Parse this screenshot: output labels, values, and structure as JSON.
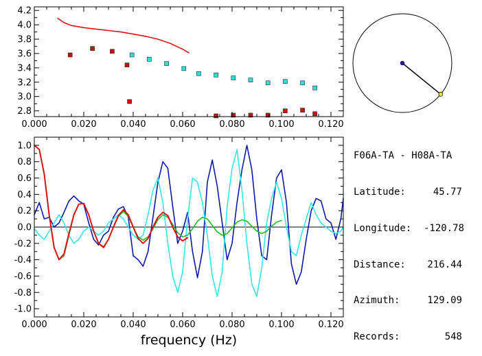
{
  "station_pair": "F06A-TA - H08A-TA",
  "info": [
    {
      "key": "Latitude:",
      "value": "45.77"
    },
    {
      "key": "Longitude:",
      "value": "-120.78"
    },
    {
      "key": "Distance:",
      "value": "216.44"
    },
    {
      "key": "Azimuth:",
      "value": "129.09"
    },
    {
      "key": "Records:",
      "value": "548"
    }
  ],
  "azimuth_deg": 129.09,
  "chart_data": [
    {
      "type": "scatter",
      "title": "",
      "xlabel": "",
      "ylabel": "",
      "xlim": [
        0.0,
        0.125
      ],
      "ylim": [
        2.72,
        4.25
      ],
      "x_ticks": [
        "0.000",
        "0.020",
        "0.040",
        "0.060",
        "0.080",
        "0.100",
        "0.120"
      ],
      "y_ticks": [
        "2.8",
        "3.0",
        "3.2",
        "3.4",
        "3.6",
        "3.8",
        "4.0",
        "4.2"
      ],
      "series": [
        {
          "kind": "line",
          "color": "#dd1111",
          "x": [
            0.0095,
            0.012,
            0.015,
            0.02,
            0.025,
            0.03,
            0.035,
            0.04,
            0.045,
            0.05,
            0.055,
            0.06,
            0.0625
          ],
          "y": [
            4.09,
            4.03,
            3.99,
            3.96,
            3.94,
            3.92,
            3.9,
            3.87,
            3.84,
            3.8,
            3.74,
            3.66,
            3.61
          ]
        },
        {
          "kind": "points",
          "color": "#cc1111",
          "x": [
            0.0145,
            0.0235,
            0.0315,
            0.0375,
            0.0385,
            0.0735,
            0.0805,
            0.0875,
            0.0945,
            0.1015,
            0.1085,
            0.1135
          ],
          "y": [
            3.58,
            3.67,
            3.63,
            3.44,
            2.93,
            2.73,
            2.74,
            2.74,
            2.74,
            2.8,
            2.81,
            2.76
          ]
        },
        {
          "kind": "points",
          "color": "#33dddd",
          "x": [
            0.0395,
            0.0465,
            0.0535,
            0.0605,
            0.0665,
            0.0735,
            0.0805,
            0.0875,
            0.0945,
            0.1015,
            0.1085,
            0.1135
          ],
          "y": [
            3.58,
            3.52,
            3.46,
            3.39,
            3.32,
            3.3,
            3.26,
            3.23,
            3.19,
            3.21,
            3.19,
            3.12
          ]
        }
      ]
    },
    {
      "type": "line",
      "title": "",
      "xlabel": "frequency (Hz)",
      "ylabel": "",
      "xlim": [
        0.0,
        0.125
      ],
      "ylim": [
        -1.1,
        1.1
      ],
      "x_ticks": [
        "0.000",
        "0.020",
        "0.040",
        "0.060",
        "0.080",
        "0.100",
        "0.120"
      ],
      "y_ticks": [
        "1.0",
        "0.8",
        "0.6",
        "0.4",
        "0.2",
        "0.0",
        "-0.2",
        "-0.4",
        "-0.6",
        "-0.8",
        "-1.0"
      ],
      "series": [
        {
          "color": "#0a1aa8",
          "x": [
            0.0,
            0.002,
            0.004,
            0.006,
            0.008,
            0.01,
            0.012,
            0.014,
            0.016,
            0.018,
            0.02,
            0.022,
            0.024,
            0.026,
            0.028,
            0.03,
            0.032,
            0.034,
            0.036,
            0.038,
            0.04,
            0.042,
            0.044,
            0.046,
            0.048,
            0.05,
            0.052,
            0.054,
            0.056,
            0.058,
            0.06,
            0.062,
            0.064,
            0.066,
            0.068,
            0.07,
            0.072,
            0.074,
            0.076,
            0.078,
            0.08,
            0.082,
            0.084,
            0.086,
            0.088,
            0.09,
            0.092,
            0.094,
            0.096,
            0.098,
            0.1,
            0.102,
            0.104,
            0.106,
            0.108,
            0.11,
            0.112,
            0.114,
            0.116,
            0.118,
            0.12,
            0.122,
            0.124,
            0.125
          ],
          "y": [
            0.15,
            0.3,
            0.1,
            0.12,
            0.0,
            0.05,
            0.18,
            0.32,
            0.38,
            0.32,
            0.28,
            0.05,
            -0.15,
            -0.22,
            -0.1,
            -0.05,
            0.12,
            0.22,
            0.25,
            0.12,
            -0.35,
            -0.4,
            -0.48,
            -0.3,
            0.12,
            0.55,
            0.8,
            0.72,
            0.25,
            -0.2,
            -0.05,
            0.18,
            -0.3,
            -0.62,
            -0.3,
            0.55,
            0.82,
            0.5,
            0.05,
            -0.4,
            -0.2,
            0.3,
            0.7,
            1.0,
            0.7,
            0.1,
            -0.35,
            -0.4,
            0.15,
            0.6,
            0.7,
            0.3,
            -0.45,
            -0.7,
            -0.55,
            -0.15,
            0.2,
            0.35,
            0.32,
            0.1,
            0.05,
            -0.15,
            0.1,
            0.35
          ]
        },
        {
          "color": "#33e6e6",
          "x": [
            0.0,
            0.002,
            0.004,
            0.006,
            0.008,
            0.01,
            0.012,
            0.014,
            0.016,
            0.018,
            0.02,
            0.022,
            0.024,
            0.026,
            0.028,
            0.03,
            0.032,
            0.034,
            0.036,
            0.038,
            0.04,
            0.042,
            0.044,
            0.046,
            0.048,
            0.05,
            0.052,
            0.054,
            0.056,
            0.058,
            0.06,
            0.062,
            0.064,
            0.066,
            0.068,
            0.07,
            0.072,
            0.074,
            0.076,
            0.078,
            0.08,
            0.082,
            0.084,
            0.086,
            0.088,
            0.09,
            0.092,
            0.094,
            0.096,
            0.098,
            0.1,
            0.102,
            0.104,
            0.106,
            0.108,
            0.11,
            0.112,
            0.114,
            0.116,
            0.118,
            0.12,
            0.122,
            0.124,
            0.125
          ],
          "y": [
            -0.02,
            -0.1,
            -0.15,
            -0.05,
            0.05,
            0.15,
            0.05,
            -0.1,
            -0.2,
            -0.15,
            -0.05,
            0.0,
            -0.05,
            -0.1,
            -0.05,
            0.05,
            0.1,
            0.15,
            0.1,
            0.0,
            -0.1,
            -0.15,
            -0.1,
            0.15,
            0.45,
            0.6,
            0.3,
            -0.2,
            -0.6,
            -0.8,
            -0.55,
            0.1,
            0.6,
            0.55,
            0.3,
            -0.1,
            -0.6,
            -0.85,
            -0.55,
            0.25,
            0.72,
            0.95,
            0.45,
            -0.2,
            -0.7,
            -0.85,
            -0.5,
            0.05,
            0.35,
            0.55,
            0.35,
            0.0,
            -0.3,
            -0.35,
            -0.1,
            0.1,
            0.3,
            0.15,
            0.05,
            0.0,
            -0.05,
            -0.08,
            -0.05,
            0.0
          ]
        },
        {
          "color": "#22bb22",
          "x": [
            0.0,
            0.002,
            0.004,
            0.006,
            0.008,
            0.01,
            0.012,
            0.014,
            0.016,
            0.018,
            0.02,
            0.022,
            0.024,
            0.026,
            0.028,
            0.03,
            0.032,
            0.034,
            0.036,
            0.038,
            0.04,
            0.042,
            0.044,
            0.046,
            0.048,
            0.05,
            0.052,
            0.054,
            0.056,
            0.058,
            0.06,
            0.062,
            0.064,
            0.066,
            0.068,
            0.07,
            0.072,
            0.074,
            0.076,
            0.078,
            0.08,
            0.082,
            0.084,
            0.086,
            0.088,
            0.09,
            0.092,
            0.094,
            0.096,
            0.098,
            0.1
          ],
          "y": [
            1.0,
            0.95,
            0.65,
            0.15,
            -0.25,
            -0.4,
            -0.35,
            -0.1,
            0.15,
            0.28,
            0.29,
            0.15,
            -0.05,
            -0.2,
            -0.24,
            -0.15,
            0.0,
            0.13,
            0.19,
            0.13,
            0.0,
            -0.12,
            -0.16,
            -0.12,
            -0.02,
            0.09,
            0.15,
            0.12,
            0.03,
            -0.07,
            -0.12,
            -0.1,
            -0.02,
            0.07,
            0.12,
            0.1,
            0.02,
            -0.06,
            -0.1,
            -0.08,
            -0.01,
            0.06,
            0.09,
            0.07,
            0.01,
            -0.05,
            -0.08,
            -0.05,
            0.01,
            0.06,
            0.08
          ]
        },
        {
          "color": "#dd1111",
          "x": [
            0.0,
            0.002,
            0.004,
            0.006,
            0.008,
            0.01,
            0.012,
            0.014,
            0.016,
            0.018,
            0.02,
            0.022,
            0.024,
            0.026,
            0.028,
            0.03,
            0.032,
            0.034,
            0.036,
            0.038,
            0.04,
            0.042,
            0.044,
            0.046,
            0.048,
            0.05,
            0.052,
            0.054,
            0.056,
            0.058,
            0.06,
            0.062
          ],
          "y": [
            1.0,
            0.95,
            0.65,
            0.15,
            -0.25,
            -0.4,
            -0.33,
            -0.08,
            0.15,
            0.28,
            0.29,
            0.15,
            -0.05,
            -0.2,
            -0.25,
            -0.15,
            0.0,
            0.14,
            0.21,
            0.15,
            0.0,
            -0.14,
            -0.2,
            -0.14,
            0.0,
            0.12,
            0.18,
            0.14,
            0.0,
            -0.12,
            -0.17,
            -0.13
          ]
        }
      ]
    }
  ]
}
